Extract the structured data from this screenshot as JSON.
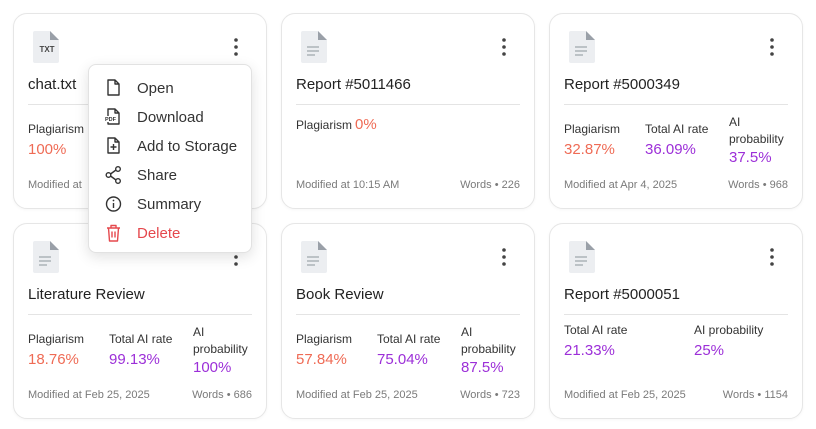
{
  "cards": [
    {
      "title": "chat.txt",
      "icon_label": "TXT",
      "metrics": [
        {
          "label": "Plagiarism",
          "value": "100%",
          "kind": "plagiarism"
        }
      ],
      "modified": "Modified at"
    },
    {
      "title": "Report #5011466",
      "inline": true,
      "metrics": [
        {
          "label": "Plagiarism",
          "value": "0%",
          "kind": "plagiarism"
        }
      ],
      "modified": "Modified at 10:15 AM",
      "words": "Words • 226"
    },
    {
      "title": "Report #5000349",
      "metrics": [
        {
          "label": "Plagiarism",
          "value": "32.87%",
          "kind": "plagiarism"
        },
        {
          "label": "Total AI rate",
          "value": "36.09%",
          "kind": "ai"
        },
        {
          "label": "AI probability",
          "value": "37.5%",
          "kind": "ai"
        }
      ],
      "modified": "Modified at Apr 4, 2025",
      "words": "Words • 968"
    },
    {
      "title": "Literature Review",
      "metrics": [
        {
          "label": "Plagiarism",
          "value": "18.76%",
          "kind": "plagiarism"
        },
        {
          "label": "Total AI rate",
          "value": "99.13%",
          "kind": "ai"
        },
        {
          "label": "AI probability",
          "value": "100%",
          "kind": "ai"
        }
      ],
      "modified": "Modified at Feb 25, 2025",
      "words": "Words • 686"
    },
    {
      "title": "Book Review",
      "metrics": [
        {
          "label": "Plagiarism",
          "value": "57.84%",
          "kind": "plagiarism"
        },
        {
          "label": "Total AI rate",
          "value": "75.04%",
          "kind": "ai"
        },
        {
          "label": "AI probability",
          "value": "87.5%",
          "kind": "ai"
        }
      ],
      "modified": "Modified at Feb 25, 2025",
      "words": "Words • 723"
    },
    {
      "title": "Report #5000051",
      "metrics": [
        {
          "label": "Total AI rate",
          "value": "21.33%",
          "kind": "ai"
        },
        {
          "label": "AI probability",
          "value": "25%",
          "kind": "ai"
        }
      ],
      "modified": "Modified at Feb 25, 2025",
      "words": "Words • 1154"
    }
  ],
  "menu": {
    "items": [
      {
        "label": "Open",
        "icon": "open"
      },
      {
        "label": "Download",
        "icon": "download",
        "icon_label": "PDF"
      },
      {
        "label": "Add to Storage",
        "icon": "add"
      },
      {
        "label": "Share",
        "icon": "share"
      },
      {
        "label": "Summary",
        "icon": "info"
      },
      {
        "label": "Delete",
        "icon": "trash",
        "danger": true
      }
    ]
  }
}
